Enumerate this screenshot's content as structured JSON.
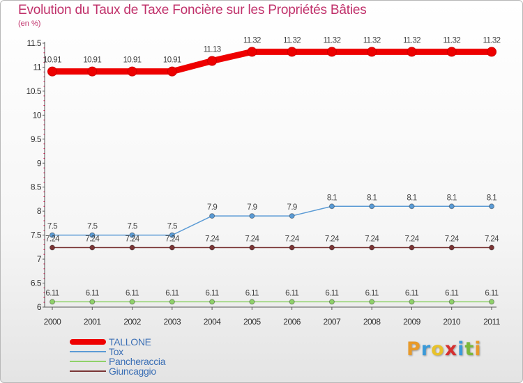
{
  "header": {
    "title": "Evolution du Taux de Taxe Foncière sur les Propriétés Bâties",
    "unit": "(en %)"
  },
  "logo": {
    "letters": [
      "P",
      "r",
      "o",
      "x",
      "i",
      "t",
      "i"
    ],
    "colors": [
      "#e89a2a",
      "#3a9ad9",
      "#e8c22a",
      "#d63030",
      "#3a9ad9",
      "#7ab83a",
      "#e89a2a"
    ]
  },
  "chart_data": {
    "type": "line",
    "title": "Evolution du Taux de Taxe Foncière sur les Propriétés Bâties",
    "ylabel": "(en %)",
    "xlabel": "",
    "x": [
      "2000",
      "2001",
      "2002",
      "2003",
      "2004",
      "2005",
      "2006",
      "2007",
      "2008",
      "2009",
      "2010",
      "2011"
    ],
    "ylim": [
      6,
      11.5
    ],
    "yticks": [
      "6",
      "6.5",
      "7",
      "7.5",
      "8",
      "8.5",
      "9",
      "9.5",
      "10",
      "10.5",
      "11",
      "11.5"
    ],
    "grid": false,
    "legend_position": "bottom-left",
    "series": [
      {
        "name": "TALLONE",
        "color": "#ee0000",
        "values": [
          10.91,
          10.91,
          10.91,
          10.91,
          11.13,
          11.32,
          11.32,
          11.32,
          11.32,
          11.32,
          11.32,
          11.32
        ],
        "labels": [
          "10.91",
          "10.91",
          "10.91",
          "10.91",
          "11.13",
          "11.32",
          "11.32",
          "11.32",
          "11.32",
          "11.32",
          "11.32",
          "11.32"
        ]
      },
      {
        "name": "Tox",
        "color": "#5b9bd5",
        "values": [
          7.5,
          7.5,
          7.5,
          7.5,
          7.9,
          7.9,
          7.9,
          8.1,
          8.1,
          8.1,
          8.1,
          8.1
        ],
        "labels": [
          "7.5",
          "7.5",
          "7.5",
          "7.5",
          "7.9",
          "7.9",
          "7.9",
          "8.1",
          "8.1",
          "8.1",
          "8.1",
          "8.1"
        ]
      },
      {
        "name": "Pancheraccia",
        "color": "#8fd16a",
        "values": [
          6.11,
          6.11,
          6.11,
          6.11,
          6.11,
          6.11,
          6.11,
          6.11,
          6.11,
          6.11,
          6.11,
          6.11
        ],
        "labels": [
          "6.11",
          "6.11",
          "6.11",
          "6.11",
          "6.11",
          "6.11",
          "6.11",
          "6.11",
          "6.11",
          "6.11",
          "6.11",
          "6.11"
        ]
      },
      {
        "name": "Giuncaggio",
        "color": "#7a3535",
        "values": [
          7.24,
          7.24,
          7.24,
          7.24,
          7.24,
          7.24,
          7.24,
          7.24,
          7.24,
          7.24,
          7.24,
          7.24
        ],
        "labels": [
          "7.24",
          "7.24",
          "7.24",
          "7.24",
          "7.24",
          "7.24",
          "7.24",
          "7.24",
          "7.24",
          "7.24",
          "7.24",
          "7.24"
        ]
      }
    ]
  }
}
